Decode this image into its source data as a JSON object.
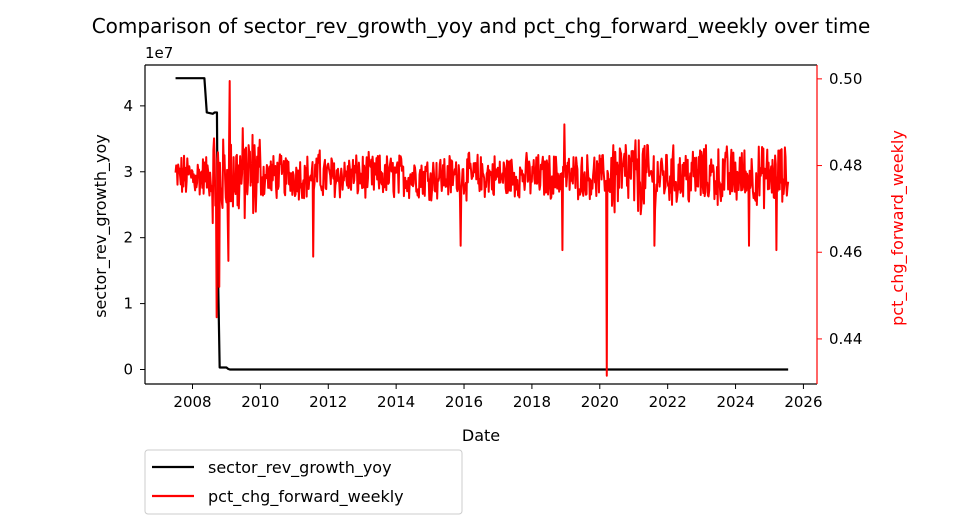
{
  "chart_data": {
    "type": "line",
    "title": "Comparison of sector_rev_growth_yoy and pct_chg_forward_weekly over time",
    "xlabel": "Date",
    "ylabel_left": "sector_rev_growth_yoy",
    "ylabel_right": "pct_chg_forward_weekly",
    "left_offset_text": "1e7",
    "grid": false,
    "legend_position": "below-left",
    "x_ticks": [
      "2008",
      "2010",
      "2012",
      "2014",
      "2016",
      "2018",
      "2020",
      "2022",
      "2024",
      "2026"
    ],
    "y_left_ticks": [
      "0",
      "1",
      "2",
      "3",
      "4"
    ],
    "y_right_ticks": [
      "0.44",
      "0.46",
      "0.48",
      "0.50"
    ],
    "xlim": [
      2006.6,
      2026.4
    ],
    "ylim_left": [
      -0.22,
      4.62
    ],
    "ylim_right": [
      0.4296,
      0.5032
    ],
    "series": [
      {
        "name": "sector_rev_growth_yoy",
        "axis": "left",
        "color": "#000000",
        "x": [
          2007.5,
          2008.35,
          2008.38,
          2008.42,
          2008.6,
          2008.65,
          2008.72,
          2008.75,
          2008.8,
          2008.85,
          2009.0,
          2009.05,
          2009.1,
          2025.55
        ],
        "y": [
          4.42,
          4.42,
          4.2,
          3.9,
          3.88,
          3.9,
          3.9,
          1.5,
          0.03,
          0.03,
          0.03,
          0.01,
          0.0,
          0.0
        ]
      },
      {
        "name": "pct_chg_forward_weekly",
        "axis": "right",
        "color": "#ff0000",
        "base": 0.4775,
        "x_start": 2007.5,
        "x_end": 2025.55,
        "points": 940,
        "noise_amplitude": 0.0045,
        "events": [
          {
            "x": 2008.72,
            "y": 0.445
          },
          {
            "x": 2008.78,
            "y": 0.452
          },
          {
            "x": 2008.9,
            "y": 0.486
          },
          {
            "x": 2009.1,
            "y": 0.4995
          },
          {
            "x": 2009.05,
            "y": 0.458
          },
          {
            "x": 2011.55,
            "y": 0.459
          },
          {
            "x": 2011.75,
            "y": 0.4835
          },
          {
            "x": 2015.9,
            "y": 0.4615
          },
          {
            "x": 2018.9,
            "y": 0.4605
          },
          {
            "x": 2018.95,
            "y": 0.4895
          },
          {
            "x": 2020.2,
            "y": 0.4315
          },
          {
            "x": 2021.6,
            "y": 0.4615
          },
          {
            "x": 2022.95,
            "y": 0.4835
          },
          {
            "x": 2024.4,
            "y": 0.4615
          },
          {
            "x": 2025.2,
            "y": 0.4605
          }
        ]
      }
    ]
  }
}
